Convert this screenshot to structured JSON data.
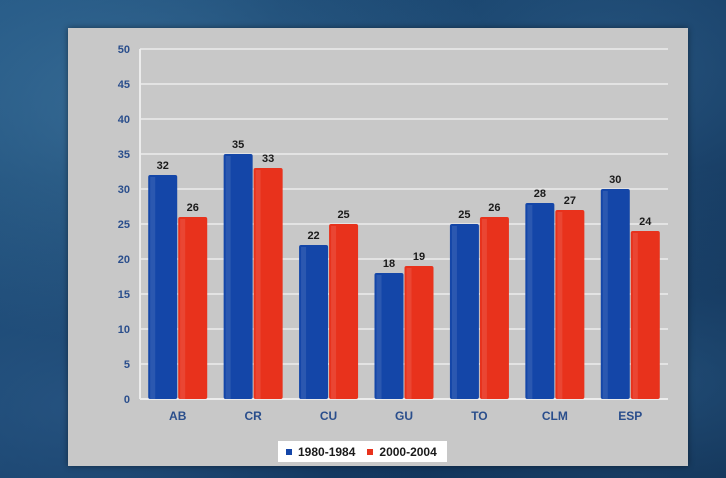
{
  "colors": {
    "series_1": "#1446a8",
    "series_2": "#e8321c",
    "panel": "#c8c8c8",
    "grid": "#ececec",
    "axis_text": "#2a4e8c"
  },
  "chart_data": {
    "type": "bar",
    "title": "",
    "xlabel": "",
    "ylabel": "",
    "categories": [
      "AB",
      "CR",
      "CU",
      "GU",
      "TO",
      "CLM",
      "ESP"
    ],
    "series": [
      {
        "name": "1980-1984",
        "values": [
          32,
          35,
          22,
          18,
          25,
          28,
          30
        ]
      },
      {
        "name": "2000-2004",
        "values": [
          26,
          33,
          25,
          19,
          26,
          27,
          24
        ]
      }
    ],
    "y_ticks": [
      "0",
      "5",
      "10",
      "15",
      "20",
      "25",
      "30",
      "35",
      "40",
      "45",
      "50"
    ],
    "ylim": [
      0,
      50
    ],
    "grid": true,
    "legend_position": "bottom-center",
    "data_labels": true
  }
}
